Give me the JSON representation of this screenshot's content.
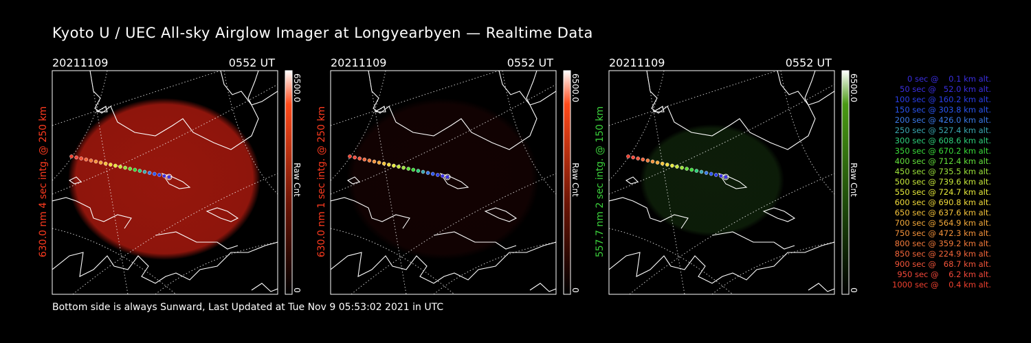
{
  "title": "Kyoto U / UEC All-sky Airglow Imager at Longyearbyen — Realtime Data",
  "footer": "Bottom side is always Sunward, Last Updated at Tue Nov  9 05:53:02 2021 in UTC",
  "panels": [
    {
      "date": "20211109",
      "time": "0552 UT",
      "ylabel": "630.0 nm 4 sec intg. @ 250 km",
      "ylabel_color": "#ff3b1f",
      "cbar_max": "6500.0",
      "cbar_min": "0",
      "cbar_unit": "Raw Cnt",
      "image_color": "#b01a0f",
      "cbar_top_color": "#ff4a1a",
      "cbar_bottom_color": "#ffffff",
      "brightness": 0.85
    },
    {
      "date": "20211109",
      "time": "0552 UT",
      "ylabel": "630.0 nm 1 sec intg. @ 250 km",
      "ylabel_color": "#ff3b1f",
      "cbar_max": "6500.0",
      "cbar_min": "0",
      "cbar_unit": "Raw Cnt",
      "image_color": "#3c0707",
      "cbar_top_color": "#ff4a1a",
      "cbar_bottom_color": "#ffffff",
      "brightness": 0.3
    },
    {
      "date": "20211109",
      "time": "0552 UT",
      "ylabel": "557.7 nm 2 sec intg. @ 150 km",
      "ylabel_color": "#3bd13b",
      "cbar_max": "6500.0",
      "cbar_min": "0",
      "cbar_unit": "Raw Cnt",
      "image_color": "#1a3a12",
      "cbar_top_color": "#4a9a14",
      "cbar_bottom_color": "#ffffff",
      "brightness": 0.5
    }
  ],
  "legend": [
    {
      "text": "0 sec @    0.1 km alt.",
      "color": "#3a2ee0"
    },
    {
      "text": "50 sec @   52.0 km alt.",
      "color": "#3a2ee0"
    },
    {
      "text": "100 sec @ 160.2 km alt.",
      "color": "#2a3ee8"
    },
    {
      "text": "150 sec @ 303.8 km alt.",
      "color": "#2a55f0"
    },
    {
      "text": "200 sec @ 426.0 km alt.",
      "color": "#3a7ae8"
    },
    {
      "text": "250 sec @ 527.4 km alt.",
      "color": "#39a8b0"
    },
    {
      "text": "300 sec @ 608.6 km alt.",
      "color": "#2ed07a"
    },
    {
      "text": "350 sec @ 670.2 km alt.",
      "color": "#3adc3a"
    },
    {
      "text": "400 sec @ 712.4 km alt.",
      "color": "#63e03a"
    },
    {
      "text": "450 sec @ 735.5 km alt.",
      "color": "#9be23a"
    },
    {
      "text": "500 sec @ 739.6 km alt.",
      "color": "#c8e83a"
    },
    {
      "text": "550 sec @ 724.7 km alt.",
      "color": "#e6ea3a"
    },
    {
      "text": "600 sec @ 690.8 km alt.",
      "color": "#f3dc3a"
    },
    {
      "text": "650 sec @ 637.6 km alt.",
      "color": "#f5c33a"
    },
    {
      "text": "700 sec @ 564.9 km alt.",
      "color": "#f5aa3a"
    },
    {
      "text": "750 sec @ 472.3 km alt.",
      "color": "#f5923a"
    },
    {
      "text": "800 sec @ 359.2 km alt.",
      "color": "#f57a3a"
    },
    {
      "text": "850 sec @ 224.9 km alt.",
      "color": "#f5663a"
    },
    {
      "text": "900 sec @   68.7 km alt.",
      "color": "#f5553a"
    },
    {
      "text": "950 sec @    6.2 km alt.",
      "color": "#f5483a"
    },
    {
      "text": "1000 sec @    0.4 km alt.",
      "color": "#f0402f"
    }
  ]
}
